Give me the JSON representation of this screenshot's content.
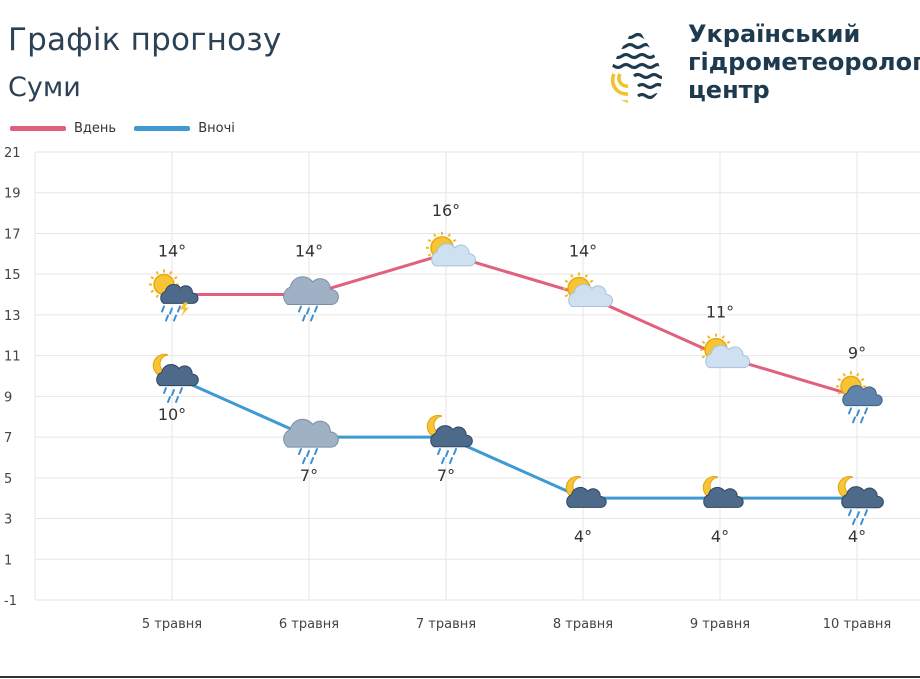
{
  "header": {
    "title": "Графік прогнозу",
    "subtitle": "Суми"
  },
  "logo": {
    "icon": "drop-icon",
    "lines": [
      "Український",
      "гідрометеорологі",
      "центр"
    ]
  },
  "colors": {
    "day": "#e0607e",
    "night": "#3f9ad3",
    "grid": "#e6e6e6",
    "text": "#333333"
  },
  "chart_data": {
    "type": "line",
    "categories": [
      "5 травня",
      "6 травня",
      "7 травня",
      "8 травня",
      "9 травня",
      "10 травня"
    ],
    "series": [
      {
        "name": "Вдень",
        "values": [
          14,
          14,
          16,
          14,
          11,
          9
        ],
        "labels": [
          "14°",
          "14°",
          "16°",
          "14°",
          "11°",
          "9°"
        ],
        "icons": [
          "sun-cloud-rain-thunder-icon",
          "cloud-rain-icon",
          "sun-cloud-icon",
          "sun-cloud-icon",
          "sun-cloud-icon",
          "sun-cloud-rain-icon"
        ]
      },
      {
        "name": "Вночі",
        "values": [
          10,
          7,
          7,
          4,
          4,
          4
        ],
        "labels": [
          "10°",
          "7°",
          "7°",
          "4°",
          "4°",
          "4°"
        ],
        "icons": [
          "moon-cloud-rain-icon",
          "cloud-rain-icon",
          "moon-cloud-rain-icon",
          "moon-cloud-icon",
          "moon-cloud-icon",
          "moon-cloud-rain-icon"
        ]
      }
    ],
    "yticks": [
      21,
      19,
      17,
      15,
      13,
      11,
      9,
      7,
      5,
      3,
      1,
      -1
    ],
    "ylim": [
      -1,
      21
    ],
    "grid": true,
    "legend_position": "top-left"
  }
}
